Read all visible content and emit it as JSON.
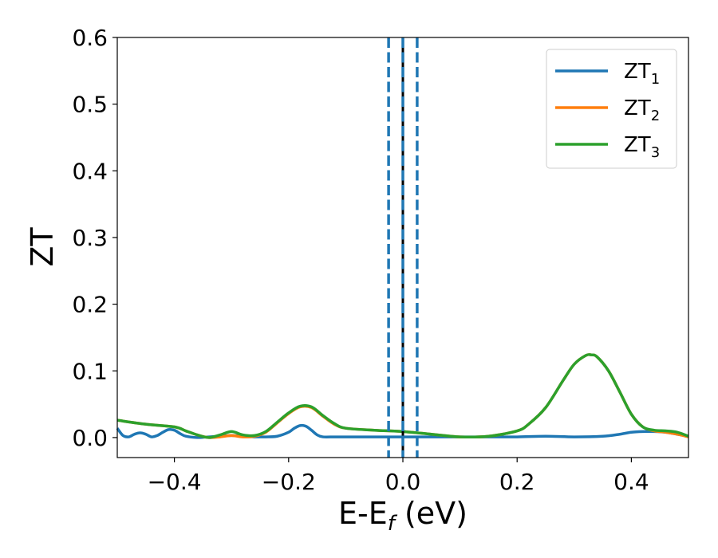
{
  "chart_data": {
    "type": "line",
    "xlabel": "E-E",
    "xlabel_sub": "f",
    "xlabel_unit": " (eV)",
    "ylabel": "ZT",
    "xlim": [
      -0.5,
      0.5
    ],
    "ylim": [
      -0.03,
      0.6
    ],
    "x_ticks": [
      -0.4,
      -0.2,
      0.0,
      0.2,
      0.4
    ],
    "x_tick_labels": [
      "−0.4",
      "−0.2",
      "0.0",
      "0.2",
      "0.4"
    ],
    "y_ticks": [
      0.0,
      0.1,
      0.2,
      0.3,
      0.4,
      0.5,
      0.6
    ],
    "y_tick_labels": [
      "0.0",
      "0.1",
      "0.2",
      "0.3",
      "0.4",
      "0.5",
      "0.6"
    ],
    "grid": false,
    "legend_position": "top-right",
    "vertical_lines": [
      {
        "x": -0.025,
        "style": "dashed",
        "color": "#1f77b4"
      },
      {
        "x": 0.025,
        "style": "dashed",
        "color": "#1f77b4"
      },
      {
        "x": 0.0,
        "style": "solid",
        "color": "#000000"
      },
      {
        "x": 0.0,
        "style": "dashed",
        "color": "#1f77b4"
      }
    ],
    "series": [
      {
        "name": "ZT",
        "name_sub": "1",
        "color": "#1f77b4",
        "x": [
          -0.5,
          -0.49,
          -0.48,
          -0.47,
          -0.46,
          -0.45,
          -0.44,
          -0.43,
          -0.42,
          -0.41,
          -0.4,
          -0.39,
          -0.38,
          -0.36,
          -0.34,
          -0.32,
          -0.3,
          -0.28,
          -0.26,
          -0.24,
          -0.22,
          -0.2,
          -0.19,
          -0.18,
          -0.17,
          -0.16,
          -0.15,
          -0.14,
          -0.12,
          -0.1,
          -0.05,
          0.0,
          0.05,
          0.1,
          0.15,
          0.2,
          0.25,
          0.3,
          0.35,
          0.38,
          0.4,
          0.42,
          0.44,
          0.46,
          0.48,
          0.5
        ],
        "y": [
          0.014,
          0.003,
          0.001,
          0.005,
          0.007,
          0.005,
          0.001,
          0.003,
          0.008,
          0.012,
          0.011,
          0.006,
          0.002,
          0.0,
          0.001,
          0.002,
          0.003,
          0.002,
          0.001,
          0.001,
          0.002,
          0.008,
          0.014,
          0.018,
          0.017,
          0.011,
          0.004,
          0.001,
          0.001,
          0.001,
          0.001,
          0.001,
          0.001,
          0.001,
          0.001,
          0.001,
          0.002,
          0.001,
          0.002,
          0.005,
          0.008,
          0.009,
          0.009,
          0.008,
          0.005,
          0.002
        ]
      },
      {
        "name": "ZT",
        "name_sub": "2",
        "color": "#ff7f0e",
        "x": [
          -0.5,
          -0.45,
          -0.4,
          -0.38,
          -0.36,
          -0.34,
          -0.32,
          -0.3,
          -0.28,
          -0.26,
          -0.24,
          -0.22,
          -0.2,
          -0.18,
          -0.16,
          -0.14,
          -0.12,
          -0.1,
          -0.05,
          0.0,
          0.05,
          0.1,
          0.15,
          0.2,
          0.22,
          0.25,
          0.28,
          0.3,
          0.32,
          0.33,
          0.34,
          0.36,
          0.38,
          0.4,
          0.42,
          0.44,
          0.46,
          0.48,
          0.5
        ],
        "y": [
          0.026,
          0.02,
          0.016,
          0.01,
          0.004,
          0.0,
          0.001,
          0.003,
          0.001,
          0.002,
          0.008,
          0.022,
          0.036,
          0.046,
          0.045,
          0.032,
          0.02,
          0.014,
          0.011,
          0.009,
          0.005,
          0.001,
          0.002,
          0.01,
          0.02,
          0.045,
          0.085,
          0.11,
          0.123,
          0.124,
          0.121,
          0.1,
          0.068,
          0.035,
          0.016,
          0.01,
          0.008,
          0.005,
          0.001
        ]
      },
      {
        "name": "ZT",
        "name_sub": "3",
        "color": "#2ca02c",
        "x": [
          -0.5,
          -0.45,
          -0.4,
          -0.38,
          -0.36,
          -0.34,
          -0.32,
          -0.3,
          -0.28,
          -0.26,
          -0.24,
          -0.22,
          -0.2,
          -0.18,
          -0.16,
          -0.14,
          -0.12,
          -0.1,
          -0.05,
          0.0,
          0.05,
          0.1,
          0.15,
          0.2,
          0.22,
          0.25,
          0.28,
          0.3,
          0.32,
          0.33,
          0.34,
          0.36,
          0.38,
          0.4,
          0.42,
          0.44,
          0.46,
          0.48,
          0.5
        ],
        "y": [
          0.026,
          0.02,
          0.016,
          0.01,
          0.004,
          0.0,
          0.004,
          0.009,
          0.004,
          0.003,
          0.009,
          0.023,
          0.037,
          0.047,
          0.046,
          0.033,
          0.021,
          0.014,
          0.011,
          0.009,
          0.005,
          0.001,
          0.002,
          0.01,
          0.02,
          0.045,
          0.085,
          0.11,
          0.123,
          0.124,
          0.121,
          0.1,
          0.068,
          0.035,
          0.016,
          0.011,
          0.01,
          0.008,
          0.002
        ]
      }
    ]
  }
}
